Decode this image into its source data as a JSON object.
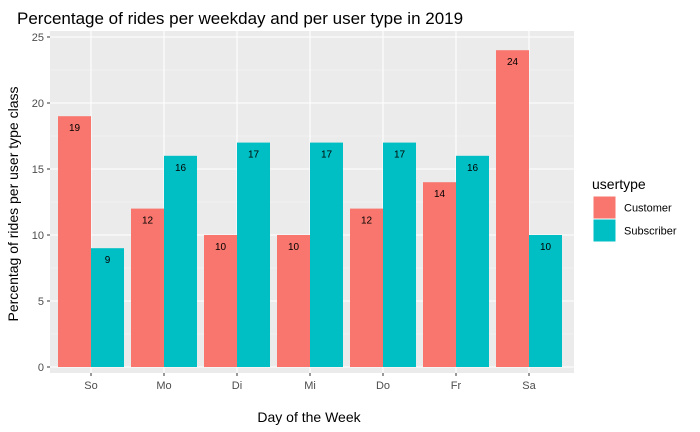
{
  "chart_data": {
    "type": "bar",
    "title": "Percentage of rides per weekday and per user type in 2019",
    "xlabel": "Day of the Week",
    "ylabel": "Percentag of rides per user type class",
    "categories": [
      "So",
      "Mo",
      "Di",
      "Mi",
      "Do",
      "Fr",
      "Sa"
    ],
    "series": [
      {
        "name": "Customer",
        "color": "#F8766D",
        "values": [
          19,
          12,
          10,
          10,
          12,
          14,
          24
        ]
      },
      {
        "name": "Subscriber",
        "color": "#00BFC4",
        "values": [
          9,
          16,
          17,
          17,
          17,
          16,
          10
        ]
      }
    ],
    "ylim": [
      0,
      25
    ],
    "yticks": [
      0,
      5,
      10,
      15,
      20,
      25
    ],
    "grid": true,
    "legend": {
      "title": "usertype",
      "position": "right"
    }
  },
  "colors": {
    "panel_background": "#EBEBEB",
    "grid_major": "#FFFFFF",
    "grid_minor": "#F7F7F7",
    "tick_label": "#4D4D4D"
  }
}
